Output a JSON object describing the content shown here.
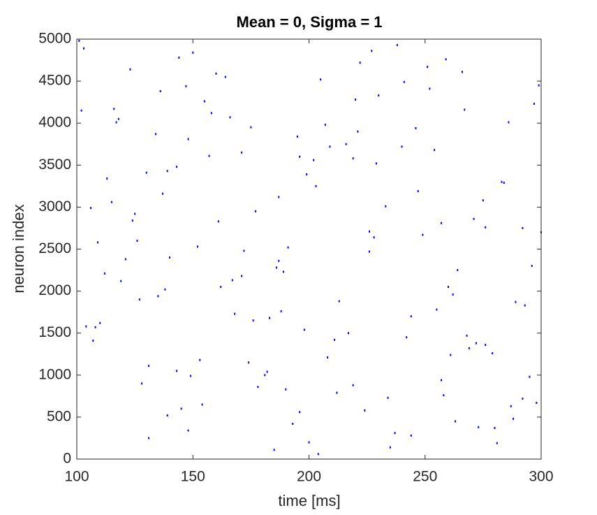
{
  "chart_data": {
    "type": "scatter",
    "title": "Mean = 0, Sigma = 1",
    "x_label": "time [ms]",
    "y_label": "neuron index",
    "xlim": [
      100,
      300
    ],
    "xticks": [
      100,
      150,
      200,
      250,
      300
    ],
    "ylim": [
      0,
      5000
    ],
    "yticks": [
      0,
      500,
      1000,
      1500,
      2000,
      2500,
      3000,
      3500,
      4000,
      4500,
      5000
    ],
    "series": [
      {
        "color": "#0000ff",
        "x": [
          103,
          187,
          242,
          131,
          276,
          158,
          219,
          295,
          112,
          204,
          168,
          251,
          139,
          283,
          226,
          117,
          190,
          262,
          148,
          299,
          125,
          235,
          171,
          208,
          287,
          144,
          260,
          199,
          108,
          273,
          155,
          228,
          182,
          246,
          121,
          292,
          164,
          213,
          137,
          269,
          101,
          196,
          257,
          176,
          230,
          115,
          281,
          152,
          240,
          128,
          211,
          267,
          186,
          143,
          298,
          174,
          222,
          106,
          255,
          193,
          134,
          279,
          160,
          237,
          119,
          202,
          289,
          147,
          249,
          181,
          113,
          224,
          271,
          166,
          198,
          140,
          258,
          216,
          297,
          127,
          185,
          233,
          150,
          276,
          109,
          207,
          263,
          171,
          244,
          136,
          292,
          157,
          219,
          189,
          123,
          268,
          203,
          145,
          286,
          177,
          104,
          241,
          162,
          254,
          131,
          226,
          280,
          195,
          116,
          212,
          172,
          261,
          139,
          238,
          293,
          154,
          187,
          220,
          107,
          275,
          149,
          229,
          200,
          126,
          266,
          183,
          247,
          161,
          288,
          118,
          209,
          135,
          252,
          178,
          296,
          143,
          221,
          191,
          110,
          259,
          167,
          234,
          284,
          153,
          205,
          124,
          272,
          196,
          244,
          138,
          102,
          217,
          257,
          175,
          300,
          148,
          227,
          188,
          130,
          264
        ],
        "values": [
          4890,
          3120,
          1450,
          250,
          2760,
          4120,
          3580,
          980,
          2210,
          60,
          1730,
          4670,
          520,
          3300,
          2470,
          4010,
          830,
          1960,
          3810,
          4450,
          2920,
          140,
          3650,
          1210,
          630,
          4780,
          2050,
          3390,
          1570,
          380,
          4260,
          2640,
          1040,
          3940,
          2380,
          720,
          4550,
          1880,
          3160,
          1320,
          4980,
          560,
          2810,
          1650,
          4330,
          3060,
          190,
          2530,
          3720,
          900,
          1420,
          4160,
          2280,
          3480,
          670,
          1150,
          4720,
          2990,
          1780,
          420,
          3870,
          1260,
          4590,
          310,
          2120,
          3560,
          1870,
          4440,
          2670,
          1000,
          3340,
          580,
          2860,
          4070,
          1540,
          2400,
          760,
          3750,
          4230,
          1900,
          110,
          3010,
          4840,
          1360,
          2580,
          3980,
          450,
          2180,
          1700,
          4380,
          2750,
          3610,
          880,
          2230,
          4640,
          1470,
          3250,
          600,
          4010,
          2950,
          1580,
          4490,
          2050,
          3680,
          1110,
          2710,
          370,
          3840,
          4170,
          790,
          2480,
          1240,
          3430,
          4930,
          1830,
          650,
          2360,
          4280,
          1410,
          3080,
          990,
          3520,
          200,
          2600,
          4610,
          1680,
          3190,
          2830,
          480,
          4050,
          3720,
          1940,
          4410,
          860,
          2300,
          1050,
          3900,
          2520,
          1620,
          4760,
          2130,
          730,
          3290,
          1180,
          4520,
          2840,
          1380,
          3600,
          280,
          2020,
          4150,
          1500,
          940,
          3950,
          2700,
          340,
          4860,
          1760,
          3410,
          2250
        ]
      }
    ],
    "grid": false,
    "box": true
  }
}
